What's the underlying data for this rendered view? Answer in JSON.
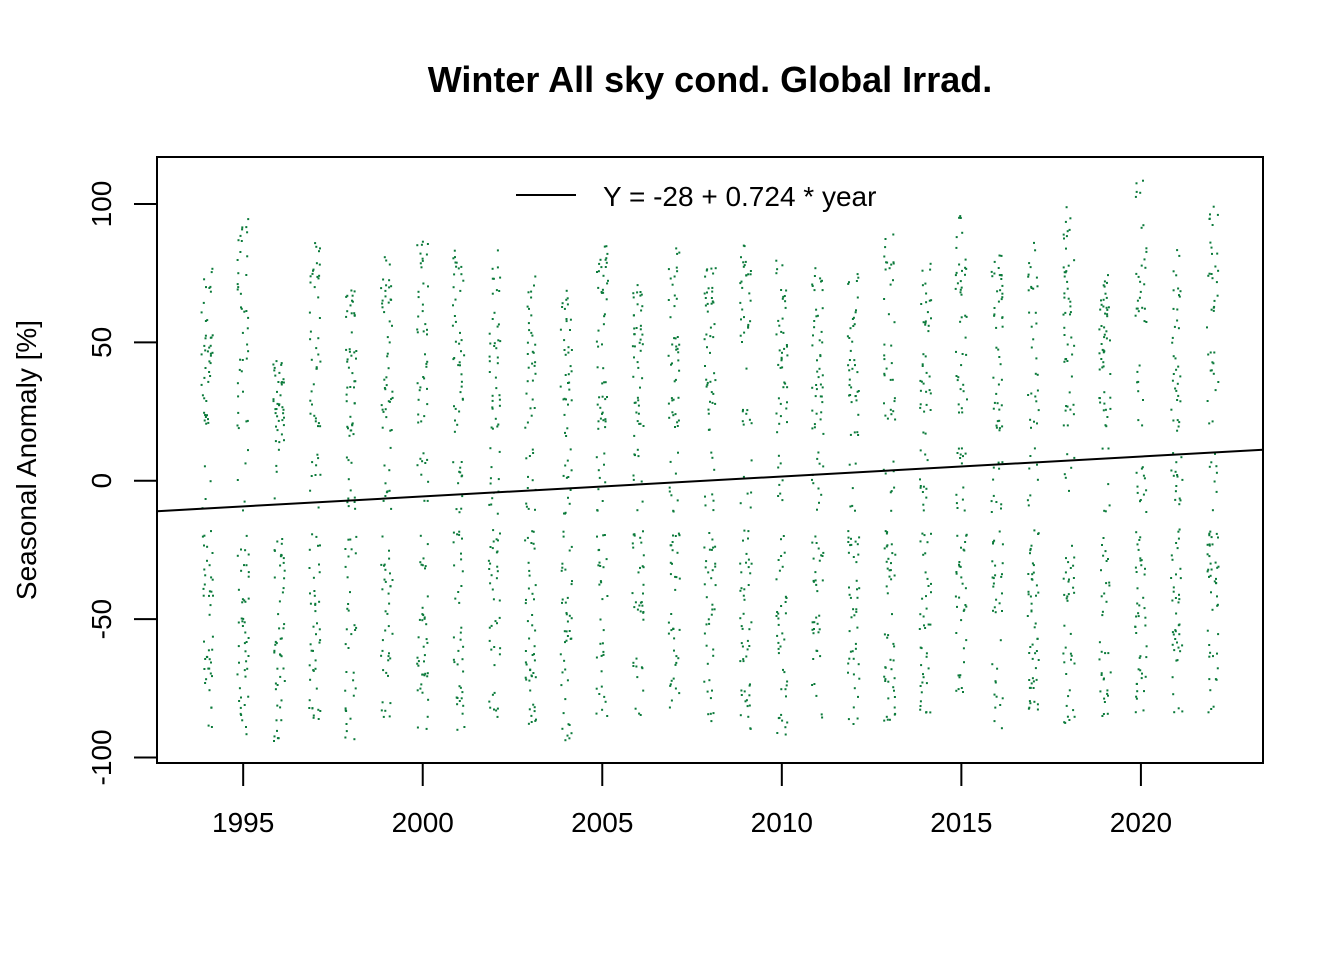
{
  "chart_data": {
    "type": "scatter",
    "title": "Winter All sky cond. Global Irrad.",
    "xlabel": "",
    "ylabel": "Seasonal Anomaly [%]",
    "xlim": [
      1992.6,
      2023.4
    ],
    "ylim": [
      -102,
      117
    ],
    "x_ticks": [
      {
        "value": 1995,
        "label": "1995"
      },
      {
        "value": 2000,
        "label": "2000"
      },
      {
        "value": 2005,
        "label": "2005"
      },
      {
        "value": 2010,
        "label": "2010"
      },
      {
        "value": 2015,
        "label": "2015"
      },
      {
        "value": 2020,
        "label": "2020"
      }
    ],
    "y_ticks": [
      {
        "value": -100,
        "label": "-100"
      },
      {
        "value": -50,
        "label": "-50"
      },
      {
        "value": 0,
        "label": "0"
      },
      {
        "value": 50,
        "label": "50"
      },
      {
        "value": 100,
        "label": "100"
      }
    ],
    "grid": false,
    "legend": {
      "position": "top-center",
      "entries": [
        "Y = -28 + 0.724 * year"
      ]
    },
    "point_color": "#0b7a3a",
    "line_color": "#000000",
    "trend_line": {
      "x": [
        1992.6,
        2023.4
      ],
      "y": [
        -11.0,
        11.2
      ]
    },
    "series": [
      {
        "type": "scatter",
        "years": [
          1994,
          1995,
          1996,
          1997,
          1998,
          1999,
          2000,
          2001,
          2002,
          2003,
          2004,
          2005,
          2006,
          2007,
          2008,
          2009,
          2010,
          2011,
          2012,
          2013,
          2014,
          2015,
          2016,
          2017,
          2018,
          2019,
          2020,
          2021,
          2022
        ],
        "points_per_year": 90,
        "y_range_per_year": [
          [
            -90,
            78
          ],
          [
            -92,
            95
          ],
          [
            -95,
            44
          ],
          [
            -88,
            86
          ],
          [
            -94,
            70
          ],
          [
            -88,
            81
          ],
          [
            -90,
            88
          ],
          [
            -90,
            85
          ],
          [
            -88,
            84
          ],
          [
            -89,
            76
          ],
          [
            -94,
            69
          ],
          [
            -86,
            89
          ],
          [
            -88,
            71
          ],
          [
            -82,
            88
          ],
          [
            -92,
            77
          ],
          [
            -90,
            88
          ],
          [
            -94,
            84
          ],
          [
            -86,
            77
          ],
          [
            -90,
            75
          ],
          [
            -87,
            90
          ],
          [
            -84,
            79
          ],
          [
            -85,
            96
          ],
          [
            -90,
            82
          ],
          [
            -84,
            87
          ],
          [
            -88,
            101
          ],
          [
            -88,
            80
          ],
          [
            -88,
            110
          ],
          [
            -85,
            84
          ],
          [
            -86,
            100
          ]
        ]
      }
    ]
  }
}
